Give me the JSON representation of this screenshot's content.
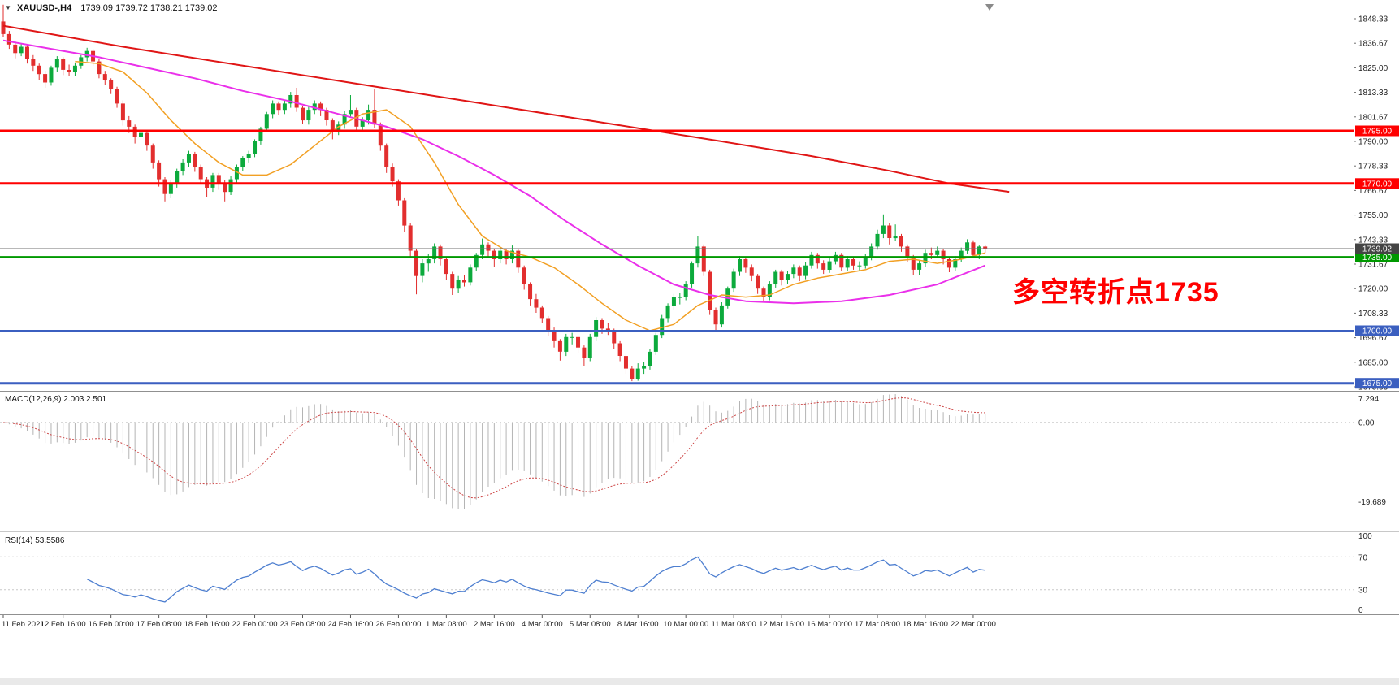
{
  "header": {
    "dropdown_icon": "▼",
    "symbol_timeframe": "XAUUSD-,H4",
    "ohlc_text": "1739.09 1739.72 1738.21 1739.02"
  },
  "annotation": {
    "text": "多空转折点1735",
    "color": "#ff0000"
  },
  "indicators": {
    "macd": {
      "label": "MACD(12,26,9) 2.003 2.501",
      "main": 2.003,
      "signal": 2.501,
      "scale_labels": [
        "7.294",
        "0.00",
        "-19.689"
      ]
    },
    "rsi": {
      "label": "RSI(14) 53.5586",
      "value": 53.5586,
      "scale_labels": [
        "100",
        "70",
        "30",
        "0"
      ]
    }
  },
  "colors": {
    "bull": "#0caa3c",
    "bear": "#e22e2e",
    "ma_fast": "#f2a024",
    "ma_mid": "#ea30ea",
    "ma_slow": "#e01616",
    "level_red": "#ff0000",
    "level_green": "#009900",
    "level_blue": "#3b5fc0",
    "current_tag": "#444444",
    "macd_hist": "#b4b4b4",
    "macd_signal": "#cc4444",
    "rsi_line": "#4e7fd0",
    "grid": "#c8c8c8",
    "axis_text": "#1f1f1f"
  },
  "chart_data": {
    "type": "candlestick",
    "symbol": "XAUUSD-",
    "timeframe": "H4",
    "last_ohlc": {
      "open": 1739.09,
      "high": 1739.72,
      "low": 1738.21,
      "close": 1739.02
    },
    "current_price": {
      "value": 1739.02,
      "label": "1739.02"
    },
    "ylim": [
      1671.5,
      1857.2
    ],
    "y_tick_values": [
      1848.33,
      1836.67,
      1825.0,
      1813.33,
      1801.67,
      1790.0,
      1778.33,
      1766.67,
      1755.0,
      1743.33,
      1731.67,
      1720.0,
      1708.33,
      1696.67,
      1685.0,
      1673.33
    ],
    "x_tick_labels": [
      "11 Feb 2021",
      "12 Feb 16:00",
      "16 Feb 00:00",
      "17 Feb 08:00",
      "18 Feb 16:00",
      "22 Feb 00:00",
      "23 Feb 08:00",
      "24 Feb 16:00",
      "26 Feb 00:00",
      "1 Mar 08:00",
      "2 Mar 16:00",
      "4 Mar 00:00",
      "5 Mar 08:00",
      "8 Mar 16:00",
      "10 Mar 00:00",
      "11 Mar 08:00",
      "12 Mar 16:00",
      "16 Mar 00:00",
      "17 Mar 08:00",
      "18 Mar 16:00",
      "22 Mar 00:00"
    ],
    "x_tick_candles": [
      0,
      10,
      18,
      26,
      34,
      42,
      50,
      58,
      66,
      74,
      82,
      90,
      98,
      106,
      114,
      122,
      130,
      138,
      146,
      154,
      162
    ],
    "levels": [
      {
        "price": 1795.0,
        "label": "1795.00",
        "color": "#ff0000",
        "width": 3
      },
      {
        "price": 1770.0,
        "label": "1770.00",
        "color": "#ff0000",
        "width": 3
      },
      {
        "price": 1735.0,
        "label": "1735.00",
        "color": "#009900",
        "width": 2.5
      },
      {
        "price": 1700.0,
        "label": "1700.00",
        "color": "#3b5fc0",
        "width": 2
      },
      {
        "price": 1675.0,
        "label": "1675.00",
        "color": "#3b5fc0",
        "width": 3
      }
    ],
    "overlays": [
      {
        "name": "ma-slow",
        "color": "#e01616",
        "width": 2,
        "points": [
          [
            0,
            1845
          ],
          [
            20,
            1835
          ],
          [
            40,
            1826
          ],
          [
            60,
            1817
          ],
          [
            80,
            1808
          ],
          [
            100,
            1799
          ],
          [
            120,
            1790
          ],
          [
            135,
            1783
          ],
          [
            148,
            1776
          ],
          [
            158,
            1770
          ],
          [
            168,
            1766
          ]
        ]
      },
      {
        "name": "ma-mid",
        "color": "#ea30ea",
        "width": 2,
        "points": [
          [
            0,
            1838
          ],
          [
            8,
            1834
          ],
          [
            16,
            1830
          ],
          [
            24,
            1825
          ],
          [
            32,
            1820
          ],
          [
            40,
            1814
          ],
          [
            48,
            1809
          ],
          [
            56,
            1803
          ],
          [
            64,
            1797
          ],
          [
            70,
            1791
          ],
          [
            76,
            1783
          ],
          [
            82,
            1774
          ],
          [
            88,
            1764
          ],
          [
            94,
            1752
          ],
          [
            100,
            1741
          ],
          [
            106,
            1731
          ],
          [
            112,
            1722
          ],
          [
            118,
            1717
          ],
          [
            124,
            1714
          ],
          [
            132,
            1713
          ],
          [
            140,
            1714
          ],
          [
            148,
            1717
          ],
          [
            156,
            1722
          ],
          [
            164,
            1731
          ]
        ]
      },
      {
        "name": "ma-fast",
        "color": "#f2a024",
        "width": 1.5,
        "points": [
          [
            12,
            1828
          ],
          [
            16,
            1827
          ],
          [
            20,
            1823
          ],
          [
            24,
            1813
          ],
          [
            28,
            1800
          ],
          [
            32,
            1789
          ],
          [
            36,
            1780
          ],
          [
            40,
            1774
          ],
          [
            44,
            1774
          ],
          [
            48,
            1779
          ],
          [
            52,
            1788
          ],
          [
            56,
            1797
          ],
          [
            60,
            1803
          ],
          [
            64,
            1805
          ],
          [
            68,
            1797
          ],
          [
            72,
            1780
          ],
          [
            76,
            1760
          ],
          [
            80,
            1745
          ],
          [
            84,
            1738
          ],
          [
            88,
            1735
          ],
          [
            92,
            1730
          ],
          [
            96,
            1722
          ],
          [
            100,
            1713
          ],
          [
            104,
            1705
          ],
          [
            108,
            1700
          ],
          [
            112,
            1703
          ],
          [
            116,
            1712
          ],
          [
            120,
            1717
          ],
          [
            124,
            1716
          ],
          [
            128,
            1717
          ],
          [
            132,
            1722
          ],
          [
            136,
            1725
          ],
          [
            140,
            1727
          ],
          [
            144,
            1729
          ],
          [
            148,
            1733
          ],
          [
            152,
            1734
          ],
          [
            156,
            1732
          ],
          [
            160,
            1734
          ],
          [
            164,
            1737
          ]
        ]
      }
    ],
    "macd_params": [
      12,
      26,
      9
    ],
    "rsi_period": 14,
    "ohlc": [
      [
        1847,
        1855,
        1839.5,
        1841
      ],
      [
        1841,
        1842.5,
        1834,
        1836
      ],
      [
        1836,
        1837.5,
        1829.5,
        1832
      ],
      [
        1832,
        1836.5,
        1830.5,
        1835
      ],
      [
        1835,
        1836,
        1827,
        1829
      ],
      [
        1829,
        1831,
        1823.5,
        1826
      ],
      [
        1826,
        1827,
        1819,
        1822
      ],
      [
        1822,
        1823.5,
        1815.5,
        1818
      ],
      [
        1818,
        1826,
        1816.5,
        1825
      ],
      [
        1825,
        1830.5,
        1823,
        1829
      ],
      [
        1829,
        1830,
        1821.5,
        1824
      ],
      [
        1824,
        1826.5,
        1821,
        1823
      ],
      [
        1823,
        1827.5,
        1821,
        1826
      ],
      [
        1826,
        1831,
        1824.5,
        1830
      ],
      [
        1830,
        1834.5,
        1828,
        1833
      ],
      [
        1833,
        1834,
        1826,
        1828
      ],
      [
        1828,
        1829,
        1820,
        1822
      ],
      [
        1822,
        1823.5,
        1817,
        1819
      ],
      [
        1819,
        1820,
        1812.5,
        1815
      ],
      [
        1815,
        1816,
        1806,
        1808
      ],
      [
        1808,
        1809.5,
        1797.5,
        1800
      ],
      [
        1800,
        1802,
        1794,
        1797
      ],
      [
        1797,
        1798,
        1789,
        1792
      ],
      [
        1792,
        1796.5,
        1790,
        1794
      ],
      [
        1794,
        1794.5,
        1785.5,
        1788
      ],
      [
        1788,
        1789,
        1777,
        1780
      ],
      [
        1780,
        1781,
        1768.5,
        1772
      ],
      [
        1772,
        1773,
        1761.5,
        1765
      ],
      [
        1765,
        1771.5,
        1763,
        1770
      ],
      [
        1770,
        1777,
        1768,
        1776
      ],
      [
        1776,
        1781.5,
        1774,
        1780
      ],
      [
        1780,
        1785.5,
        1778,
        1784
      ],
      [
        1784,
        1785,
        1775.5,
        1778
      ],
      [
        1778,
        1779,
        1769.5,
        1772
      ],
      [
        1772,
        1773,
        1763.5,
        1768
      ],
      [
        1768,
        1775,
        1766,
        1774
      ],
      [
        1774,
        1775,
        1767,
        1770
      ],
      [
        1770,
        1771.5,
        1761.5,
        1766
      ],
      [
        1766,
        1773.5,
        1764.5,
        1772
      ],
      [
        1772,
        1779,
        1770.5,
        1778
      ],
      [
        1778,
        1783,
        1776,
        1782
      ],
      [
        1782,
        1785.5,
        1780,
        1784
      ],
      [
        1784,
        1791,
        1782.5,
        1790
      ],
      [
        1790,
        1797,
        1788.5,
        1796
      ],
      [
        1796,
        1804,
        1794.5,
        1803
      ],
      [
        1803,
        1809.5,
        1801,
        1808
      ],
      [
        1808,
        1809,
        1802.5,
        1805
      ],
      [
        1805,
        1809.5,
        1803,
        1808
      ],
      [
        1808,
        1813.5,
        1806,
        1812
      ],
      [
        1812,
        1815.5,
        1804,
        1806
      ],
      [
        1806,
        1807,
        1798.5,
        1800
      ],
      [
        1800,
        1806.5,
        1798,
        1805
      ],
      [
        1805,
        1809.5,
        1803,
        1808
      ],
      [
        1808,
        1809,
        1802,
        1805
      ],
      [
        1805,
        1806,
        1797.5,
        1800
      ],
      [
        1800,
        1801,
        1791,
        1795
      ],
      [
        1795,
        1799.5,
        1793,
        1798
      ],
      [
        1798,
        1804.5,
        1796,
        1803
      ],
      [
        1803,
        1812,
        1801.5,
        1805
      ],
      [
        1805,
        1806,
        1794.5,
        1797
      ],
      [
        1797,
        1801.5,
        1795,
        1800
      ],
      [
        1800,
        1807.5,
        1798,
        1805
      ],
      [
        1805,
        1815,
        1796.5,
        1798
      ],
      [
        1798,
        1799,
        1785.5,
        1788
      ],
      [
        1788,
        1789,
        1775,
        1778
      ],
      [
        1778,
        1779.5,
        1768.5,
        1771
      ],
      [
        1771,
        1772,
        1759.5,
        1762
      ],
      [
        1762,
        1763,
        1747,
        1750
      ],
      [
        1750,
        1751,
        1734.5,
        1738
      ],
      [
        1738,
        1739,
        1717.3,
        1726
      ],
      [
        1726,
        1734,
        1723,
        1732
      ],
      [
        1732,
        1736.5,
        1728,
        1734
      ],
      [
        1734,
        1741.5,
        1732,
        1740
      ],
      [
        1740,
        1741,
        1731,
        1734
      ],
      [
        1734,
        1735,
        1724,
        1727
      ],
      [
        1727,
        1728,
        1717,
        1720
      ],
      [
        1720,
        1726,
        1718,
        1724
      ],
      [
        1724,
        1726.5,
        1721,
        1723
      ],
      [
        1723,
        1731.5,
        1721.5,
        1730
      ],
      [
        1730,
        1737,
        1728.5,
        1736
      ],
      [
        1736,
        1743.8,
        1734,
        1741
      ],
      [
        1741,
        1742,
        1734.5,
        1738
      ],
      [
        1738,
        1739,
        1730.5,
        1734
      ],
      [
        1734,
        1739.5,
        1732,
        1738
      ],
      [
        1738,
        1739,
        1731.5,
        1734
      ],
      [
        1734,
        1740.5,
        1732,
        1738
      ],
      [
        1738,
        1739,
        1727.5,
        1730
      ],
      [
        1730,
        1731,
        1719.5,
        1722
      ],
      [
        1722,
        1723,
        1712,
        1715
      ],
      [
        1715,
        1717.5,
        1708.5,
        1711
      ],
      [
        1711,
        1712,
        1703.5,
        1706
      ],
      [
        1706,
        1707,
        1697.5,
        1700
      ],
      [
        1700,
        1701.5,
        1692,
        1695
      ],
      [
        1695,
        1696,
        1685.8,
        1690
      ],
      [
        1690,
        1698.5,
        1688,
        1697
      ],
      [
        1697,
        1699,
        1693.5,
        1697
      ],
      [
        1697,
        1698,
        1689.5,
        1692
      ],
      [
        1692,
        1693,
        1683.2,
        1687
      ],
      [
        1687,
        1698.5,
        1685.5,
        1697
      ],
      [
        1697,
        1706.5,
        1695,
        1705
      ],
      [
        1705,
        1706,
        1698.5,
        1701
      ],
      [
        1701,
        1703.5,
        1698,
        1700
      ],
      [
        1700,
        1701,
        1691.5,
        1694
      ],
      [
        1694,
        1695,
        1685.5,
        1688
      ],
      [
        1688,
        1689,
        1679.5,
        1682
      ],
      [
        1682,
        1683,
        1676,
        1677
      ],
      [
        1677,
        1684.5,
        1676.2,
        1682
      ],
      [
        1682,
        1685,
        1679.5,
        1683
      ],
      [
        1683,
        1691.5,
        1681.5,
        1690
      ],
      [
        1690,
        1699,
        1688.5,
        1698
      ],
      [
        1698,
        1707.5,
        1696.5,
        1706
      ],
      [
        1706,
        1713,
        1704,
        1712
      ],
      [
        1712,
        1717.5,
        1710,
        1716
      ],
      [
        1716,
        1718,
        1712.5,
        1716
      ],
      [
        1716,
        1723.5,
        1714.5,
        1722
      ],
      [
        1722,
        1733,
        1720.5,
        1732
      ],
      [
        1732,
        1744.8,
        1730,
        1740
      ],
      [
        1740,
        1741,
        1726,
        1728
      ],
      [
        1728,
        1729,
        1707.5,
        1710
      ],
      [
        1710,
        1711,
        1700.2,
        1703
      ],
      [
        1703,
        1713.5,
        1701.5,
        1712
      ],
      [
        1712,
        1721,
        1710.5,
        1720
      ],
      [
        1720,
        1729.5,
        1718.5,
        1728
      ],
      [
        1728,
        1735.5,
        1726,
        1734
      ],
      [
        1734,
        1735,
        1727.5,
        1730
      ],
      [
        1730,
        1731.5,
        1723.5,
        1726
      ],
      [
        1726,
        1727,
        1717.5,
        1720
      ],
      [
        1720,
        1721,
        1713.5,
        1716
      ],
      [
        1716,
        1723.5,
        1714.5,
        1722
      ],
      [
        1722,
        1729,
        1720.5,
        1728
      ],
      [
        1728,
        1729,
        1721.5,
        1724
      ],
      [
        1724,
        1728.5,
        1722,
        1727
      ],
      [
        1727,
        1731.5,
        1725,
        1730
      ],
      [
        1730,
        1731,
        1723.5,
        1726
      ],
      [
        1726,
        1732.5,
        1724.5,
        1731
      ],
      [
        1731,
        1737.5,
        1729.5,
        1736
      ],
      [
        1736,
        1737,
        1729.5,
        1732
      ],
      [
        1732,
        1733.5,
        1727,
        1729
      ],
      [
        1729,
        1734.5,
        1727.5,
        1733
      ],
      [
        1733,
        1737.5,
        1731.5,
        1736
      ],
      [
        1736,
        1737,
        1728.5,
        1730
      ],
      [
        1730,
        1735.5,
        1728.5,
        1734
      ],
      [
        1734,
        1735,
        1729,
        1731
      ],
      [
        1731,
        1733,
        1728.5,
        1731
      ],
      [
        1731,
        1736.5,
        1729.5,
        1735
      ],
      [
        1735,
        1741.5,
        1733.5,
        1740
      ],
      [
        1740,
        1748,
        1738.5,
        1746
      ],
      [
        1746,
        1755.3,
        1744,
        1750
      ],
      [
        1750,
        1751,
        1741,
        1744
      ],
      [
        1744,
        1750.5,
        1742.5,
        1745
      ],
      [
        1745,
        1746,
        1737.5,
        1740
      ],
      [
        1740,
        1741,
        1732.5,
        1735
      ],
      [
        1735,
        1736,
        1726.5,
        1729
      ],
      [
        1729,
        1733.5,
        1726.5,
        1732
      ],
      [
        1732,
        1738.5,
        1730.5,
        1737
      ],
      [
        1737,
        1739.5,
        1734,
        1736
      ],
      [
        1736,
        1740,
        1734.5,
        1738
      ],
      [
        1738,
        1739,
        1731.5,
        1734
      ],
      [
        1734,
        1735,
        1727.8,
        1730
      ],
      [
        1730,
        1735.5,
        1728.5,
        1734
      ],
      [
        1734,
        1739.5,
        1732.5,
        1738
      ],
      [
        1738,
        1743.5,
        1736.5,
        1742
      ],
      [
        1742,
        1743,
        1734.5,
        1736
      ],
      [
        1736,
        1740.5,
        1734,
        1740
      ],
      [
        1740,
        1740.7,
        1737,
        1739
      ]
    ]
  }
}
